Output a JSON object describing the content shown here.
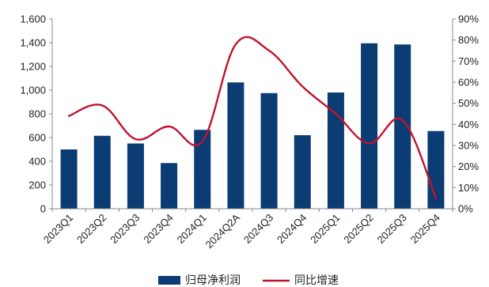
{
  "chart_data": {
    "type": "bar",
    "title": "",
    "xlabel": "",
    "ylabel": "",
    "categories": [
      "2023Q1",
      "2023Q2",
      "2023Q3",
      "2023Q4",
      "2024Q1",
      "2024Q2A",
      "2024Q3",
      "2024Q4",
      "2025Q1",
      "2025Q2",
      "2025Q3",
      "2025Q4"
    ],
    "ylim": [
      0,
      1600
    ],
    "y_ticks": [
      "0",
      "200",
      "400",
      "600",
      "800",
      "1,000",
      "1,200",
      "1,400",
      "1,600"
    ],
    "y2lim": [
      0,
      90
    ],
    "y2_ticks": [
      "0%",
      "10%",
      "20%",
      "30%",
      "40%",
      "50%",
      "60%",
      "70%",
      "80%",
      "90%"
    ],
    "grid": false,
    "legend_position": "bottom-center",
    "series": [
      {
        "name": "归母净利润",
        "type": "bar",
        "axis": "left",
        "color": "#0b3c73",
        "values": [
          500,
          615,
          550,
          385,
          665,
          1065,
          975,
          620,
          980,
          1395,
          1385,
          655
        ]
      },
      {
        "name": "同比增速",
        "type": "line",
        "axis": "right",
        "smooth": true,
        "color": "#c0142c",
        "values": [
          44,
          49,
          33,
          39,
          32,
          78,
          75,
          58,
          45,
          31,
          42,
          5
        ]
      }
    ]
  }
}
